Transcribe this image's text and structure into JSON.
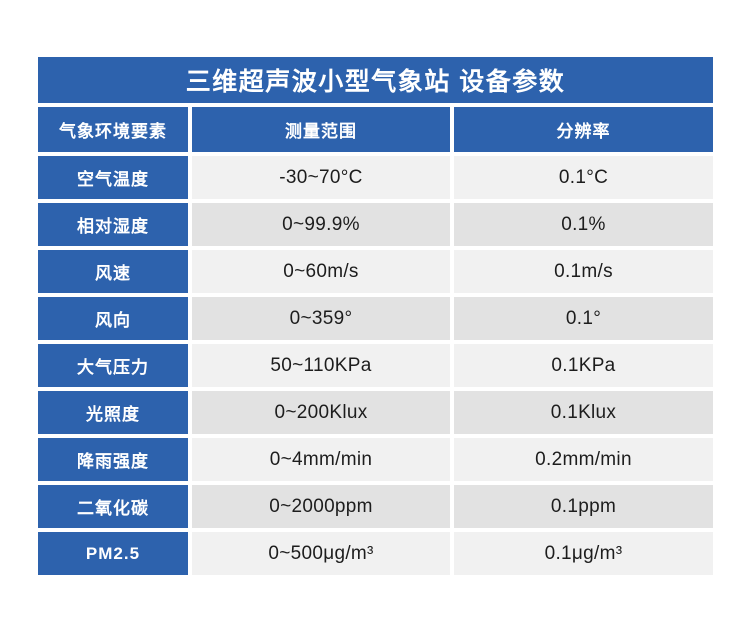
{
  "title": "三维超声波小型气象站 设备参数",
  "table": {
    "columns": [
      "气象环境要素",
      "测量范围",
      "分辨率"
    ],
    "rows": [
      {
        "label": "空气温度",
        "range": "-30~70°C",
        "resolution": "0.1°C"
      },
      {
        "label": "相对湿度",
        "range": "0~99.9%",
        "resolution": "0.1%"
      },
      {
        "label": "风速",
        "range": "0~60m/s",
        "resolution": "0.1m/s"
      },
      {
        "label": "风向",
        "range": "0~359°",
        "resolution": "0.1°"
      },
      {
        "label": "大气压力",
        "range": "50~110KPa",
        "resolution": "0.1KPa"
      },
      {
        "label": "光照度",
        "range": "0~200Klux",
        "resolution": "0.1Klux"
      },
      {
        "label": "降雨强度",
        "range": "0~4mm/min",
        "resolution": "0.2mm/min"
      },
      {
        "label": "二氧化碳",
        "range": "0~2000ppm",
        "resolution": "0.1ppm"
      },
      {
        "label": "PM2.5",
        "range": "0~500μg/m³",
        "resolution": "0.1μg/m³"
      }
    ]
  },
  "colors": {
    "blue": "#2d62ad",
    "row_light": "#f1f1f1",
    "row_dark": "#e2e2e2",
    "text_dark": "#1d1d1d"
  }
}
